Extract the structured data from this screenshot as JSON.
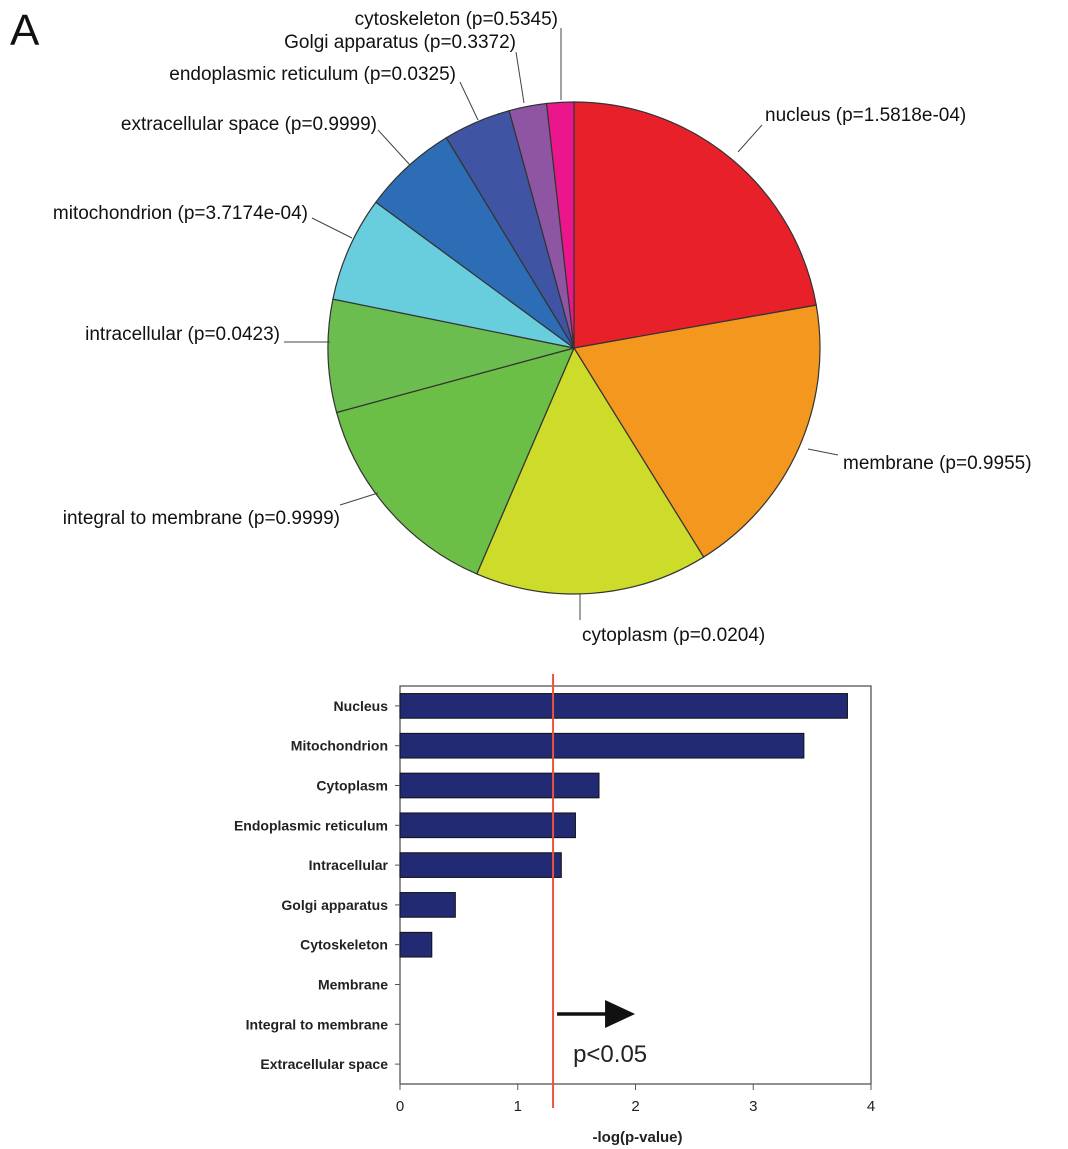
{
  "panel_label": "A",
  "chart_data": [
    {
      "type": "pie",
      "title": "",
      "slices": [
        {
          "label": "nucleus (p=1.5818e-04)",
          "value": 22.5,
          "color": "#e8202a"
        },
        {
          "label": "membrane (p=0.9955)",
          "value": 19.2,
          "color": "#f4971f"
        },
        {
          "label": "cytoplasm (p=0.0204)",
          "value": 15.5,
          "color": "#cddc2a"
        },
        {
          "label": "integral to membrane (p=0.9999)",
          "value": 14.5,
          "color": "#6bbe46"
        },
        {
          "label": "intracellular (p=0.0423)",
          "value": 7.5,
          "color": "#6cbd4f"
        },
        {
          "label": "mitochondrion (p=3.7174e-04)",
          "value": 7.0,
          "color": "#68cedd"
        },
        {
          "label": "extracellular space (p=0.9999)",
          "value": 6.3,
          "color": "#2d6db5"
        },
        {
          "label": "endoplasmic reticulum (p=0.0325)",
          "value": 4.5,
          "color": "#3f54a3"
        },
        {
          "label": "Golgi apparatus (p=0.3372)",
          "value": 2.5,
          "color": "#8e55a2"
        },
        {
          "label": "cytoskeleton (p=0.5345)",
          "value": 1.8,
          "color": "#ec168c"
        }
      ]
    },
    {
      "type": "bar",
      "orientation": "horizontal",
      "categories": [
        "Nucleus",
        "Mitochondrion",
        "Cytoplasm",
        "Endoplasmic reticulum",
        "Intracellular",
        "Golgi apparatus",
        "Cytoskeleton",
        "Membrane",
        "Integral to membrane",
        "Extracellular space"
      ],
      "values": [
        3.8,
        3.43,
        1.69,
        1.49,
        1.37,
        0.47,
        0.27,
        0.0,
        0.0,
        0.0
      ],
      "xlabel": "-log(p-value)",
      "ylabel": "",
      "xlim": [
        0,
        4
      ],
      "xticks": [
        "0",
        "1",
        "2",
        "3",
        "4"
      ],
      "bar_color": "#222a73",
      "threshold": {
        "value": 1.3,
        "label": "p<0.05",
        "color": "#e8543c"
      },
      "grid": false
    }
  ]
}
